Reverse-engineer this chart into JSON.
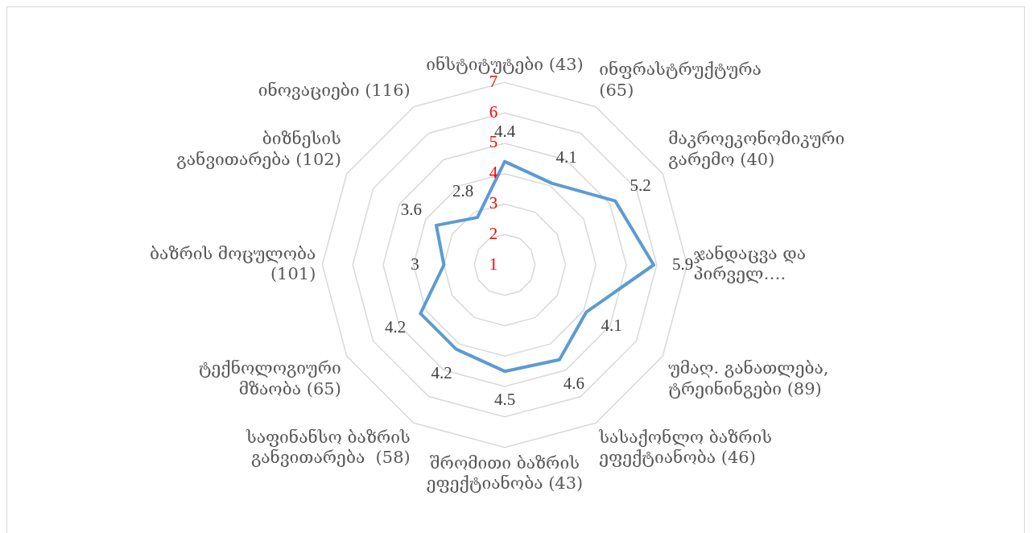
{
  "chart_data": {
    "type": "radar",
    "categories": [
      "ინსტიტუტები (43)",
      "ინფრასტრუქტურა (65)",
      "მაკროეკონომიკური გარემო (40)",
      "ჯანდაცვა და პირველ….",
      "უმაღ. განათლება, ტრეინინგები (89)",
      "სასაქონლო ბაზრის ეფექტიანობა (46)",
      "შრომითი ბაზრის ეფექტიანობა (43)",
      "საფინანსო ბაზრის განვითარება  (58)",
      "ტექნოლოგიური მზაობა (65)",
      "ბაზრის მოცულობა (101)",
      "ბიზნესის განვითარება (102)",
      "ინოვაციები (116)"
    ],
    "series": [
      {
        "color": "#5b9bd5",
        "values": [
          4.4,
          4.1,
          5.2,
          5.9,
          4.1,
          4.6,
          4.5,
          4.2,
          4.2,
          3,
          3.6,
          2.8
        ]
      }
    ],
    "ylim": [
      1,
      7
    ],
    "yticks": [
      1,
      2,
      3,
      4,
      5,
      6,
      7
    ],
    "grid": true,
    "data_labels": true,
    "marker": "none"
  }
}
